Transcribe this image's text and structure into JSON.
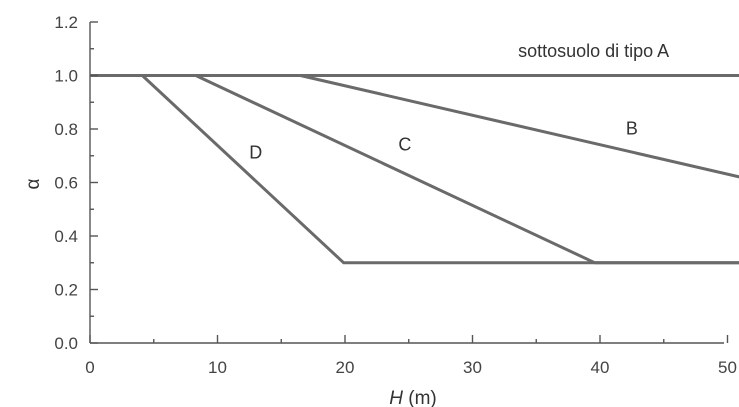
{
  "chart_data": {
    "type": "line",
    "title": "",
    "xlabel_var": "H",
    "xlabel_unit": "(m)",
    "ylabel": "α",
    "xlim": [
      0,
      51
    ],
    "ylim": [
      0,
      1.2
    ],
    "xticks": [
      0,
      10,
      20,
      30,
      40,
      50
    ],
    "xtick_labels": [
      "0",
      "10",
      "20",
      "30",
      "40",
      "50"
    ],
    "yticks": [
      0,
      0.2,
      0.4,
      0.6,
      0.8,
      1.0,
      1.2
    ],
    "ytick_labels": [
      "0.0",
      "0.2",
      "0.4",
      "0.6",
      "0.8",
      "1.0",
      "1.2"
    ],
    "grid": false,
    "legend": "none",
    "series": [
      {
        "name": "sottosuolo di tipo A",
        "points": [
          [
            0,
            1.0
          ],
          [
            51,
            1.0
          ]
        ],
        "label_at": [
          39.5,
          1.07
        ]
      },
      {
        "name": "B",
        "points": [
          [
            16.5,
            1.0
          ],
          [
            51,
            0.62
          ]
        ],
        "label_at": [
          42.5,
          0.78
        ]
      },
      {
        "name": "C",
        "points": [
          [
            8.3,
            1.0
          ],
          [
            39.6,
            0.3
          ],
          [
            51,
            0.3
          ]
        ],
        "label_at": [
          24.7,
          0.72
        ]
      },
      {
        "name": "D",
        "points": [
          [
            4.1,
            1.0
          ],
          [
            19.9,
            0.3
          ],
          [
            51,
            0.3
          ]
        ],
        "label_at": [
          13,
          0.69
        ]
      }
    ]
  }
}
